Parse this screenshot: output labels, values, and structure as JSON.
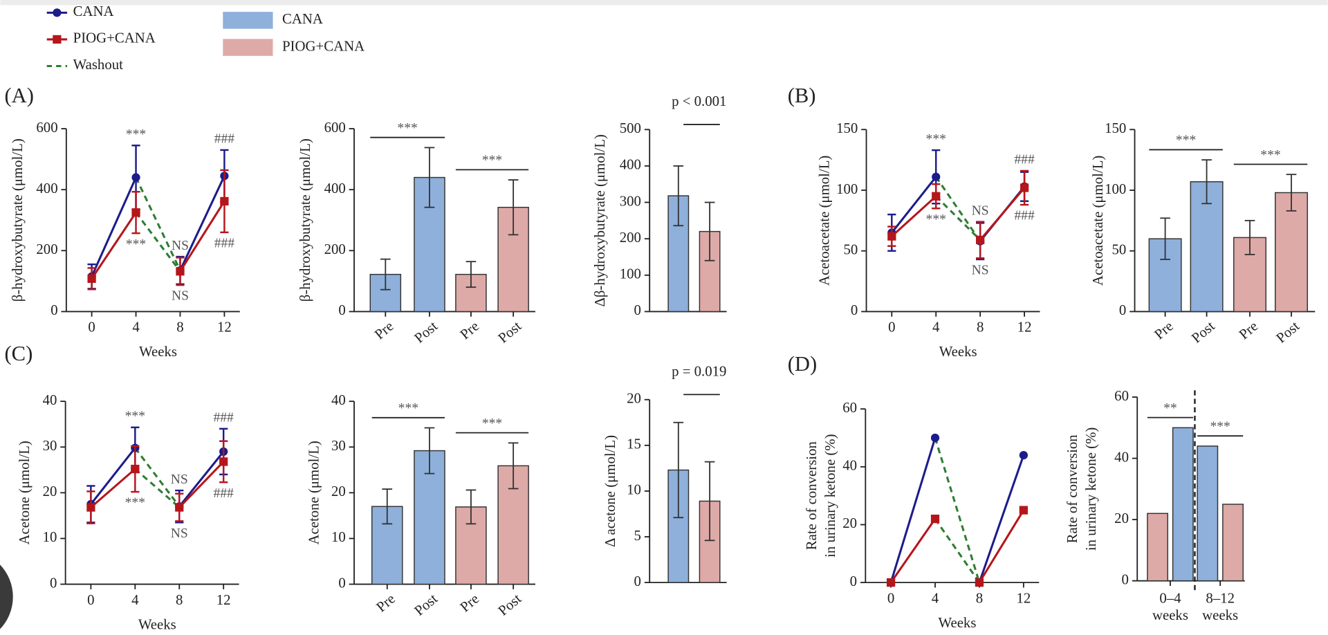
{
  "panel_labels": [
    "(A)",
    "(B)",
    "(C)",
    "(D)"
  ],
  "legend": {
    "lines": [
      {
        "name": "CANA",
        "color": "#1c1c8c",
        "marker": "circle"
      },
      {
        "name": "PIOG+CANA",
        "color": "#b5161b",
        "marker": "square"
      },
      {
        "name": "Washout",
        "color": "#2e7d32",
        "dash": true
      }
    ],
    "bars": [
      {
        "name": "CANA",
        "color": "#8eb0db"
      },
      {
        "name": "PIOG+CANA",
        "color": "#ddaaa8"
      }
    ]
  },
  "chart_data": [
    {
      "type": "line",
      "ylabel": "β-hydroxybutyrate (μmol/L)",
      "xlabel": "Weeks",
      "x": [
        0,
        4,
        8,
        12
      ],
      "xlim": [
        -2.3,
        13.4
      ],
      "xticks": [
        0,
        4,
        8,
        12
      ],
      "ylim": [
        0,
        600
      ],
      "yticks": [
        0,
        200,
        400,
        600
      ],
      "dashed_between": [
        4,
        8
      ],
      "dash_color": "#2e7d32",
      "series": [
        {
          "color": "#1c1c8c",
          "marker": "circle",
          "values": [
            115,
            440,
            135,
            445
          ],
          "errors": [
            40,
            105,
            45,
            85
          ]
        },
        {
          "color": "#b5161b",
          "marker": "square",
          "values": [
            108,
            325,
            132,
            362
          ],
          "errors": [
            35,
            68,
            45,
            102
          ]
        }
      ],
      "annotations": [
        {
          "text": "***",
          "x": 4,
          "pos": "above"
        },
        {
          "text": "***",
          "x": 4,
          "pos": "below"
        },
        {
          "text": "NS",
          "x": 8,
          "pos": "above"
        },
        {
          "text": "NS",
          "x": 8,
          "pos": "below"
        },
        {
          "text": "###",
          "x": 12,
          "pos": "above"
        },
        {
          "text": "###",
          "x": 12,
          "pos": "below"
        }
      ]
    },
    {
      "type": "bar",
      "ylabel": "β-hydroxybutyrate (μmol/L)",
      "categories": [
        "Pre",
        "Post",
        "Pre",
        "Post"
      ],
      "values": [
        122,
        440,
        122,
        342
      ],
      "errors": [
        50,
        98,
        42,
        90
      ],
      "colors": [
        "#8eb0db",
        "#8eb0db",
        "#ddaaa8",
        "#ddaaa8"
      ],
      "ylim": [
        0,
        600
      ],
      "yticks": [
        0,
        200,
        400,
        600
      ],
      "brackets": [
        {
          "text": "***",
          "from": 0,
          "to": 1
        },
        {
          "text": "***",
          "from": 2,
          "to": 3
        }
      ]
    },
    {
      "type": "bar",
      "ylabel": "Δβ-hydroxybutyrate (μmol/L)",
      "categories": [
        null,
        null
      ],
      "values": [
        318,
        220
      ],
      "errors": [
        82,
        80
      ],
      "colors": [
        "#8eb0db",
        "#ddaaa8"
      ],
      "ylim": [
        0,
        500
      ],
      "yticks": [
        0,
        100,
        200,
        300,
        400,
        500
      ],
      "p_label": "p < 0.001"
    },
    {
      "type": "line",
      "ylabel": "Acetoacetate (μmol/L)",
      "xlabel": "Weeks",
      "x": [
        0,
        4,
        8,
        12
      ],
      "xlim": [
        -2.3,
        13.4
      ],
      "xticks": [
        0,
        4,
        8,
        12
      ],
      "ylim": [
        0,
        150
      ],
      "yticks": [
        0,
        50,
        100,
        150
      ],
      "dashed_between": [
        4,
        8
      ],
      "dash_color": "#2e7d32",
      "series": [
        {
          "color": "#1c1c8c",
          "marker": "circle",
          "values": [
            65,
            111,
            58,
            103
          ],
          "errors": [
            15,
            22,
            15,
            12
          ]
        },
        {
          "color": "#b5161b",
          "marker": "square",
          "values": [
            62,
            95,
            59,
            102
          ],
          "errors": [
            8,
            10,
            15,
            14
          ]
        }
      ],
      "annotations": [
        {
          "text": "***",
          "x": 4,
          "pos": "above"
        },
        {
          "text": "***",
          "x": 4,
          "pos": "below"
        },
        {
          "text": "NS",
          "x": 8,
          "pos": "above"
        },
        {
          "text": "NS",
          "x": 8,
          "pos": "below"
        },
        {
          "text": "###",
          "x": 12,
          "pos": "above"
        },
        {
          "text": "###",
          "x": 12,
          "pos": "below"
        }
      ]
    },
    {
      "type": "bar",
      "ylabel": "Acetoacetate (μmol/L)",
      "categories": [
        "Pre",
        "Post",
        "Pre",
        "Post"
      ],
      "values": [
        60,
        107,
        61,
        98
      ],
      "errors": [
        17,
        18,
        14,
        15
      ],
      "colors": [
        "#8eb0db",
        "#8eb0db",
        "#ddaaa8",
        "#ddaaa8"
      ],
      "ylim": [
        0,
        150
      ],
      "yticks": [
        0,
        50,
        100,
        150
      ],
      "brackets": [
        {
          "text": "***",
          "from": 0,
          "to": 1
        },
        {
          "text": "***",
          "from": 2,
          "to": 3
        }
      ]
    },
    {
      "type": "line",
      "ylabel": "Acetone (μmol/L)",
      "xlabel": "Weeks",
      "x": [
        0,
        4,
        8,
        12
      ],
      "xlim": [
        -2.3,
        13.4
      ],
      "xticks": [
        0,
        4,
        8,
        12
      ],
      "ylim": [
        0,
        40
      ],
      "yticks": [
        0,
        10,
        20,
        30,
        40
      ],
      "dashed_between": [
        4,
        8
      ],
      "dash_color": "#2e7d32",
      "series": [
        {
          "color": "#1c1c8c",
          "marker": "circle",
          "values": [
            17.5,
            29.8,
            17,
            29
          ],
          "errors": [
            4,
            4.5,
            3.5,
            5
          ]
        },
        {
          "color": "#b5161b",
          "marker": "square",
          "values": [
            16.8,
            25.2,
            16.8,
            26.8
          ],
          "errors": [
            3.5,
            5,
            3,
            4.5
          ]
        }
      ],
      "annotations": [
        {
          "text": "***",
          "x": 4,
          "pos": "above"
        },
        {
          "text": "***",
          "x": 4,
          "pos": "below"
        },
        {
          "text": "NS",
          "x": 8,
          "pos": "above"
        },
        {
          "text": "NS",
          "x": 8,
          "pos": "below"
        },
        {
          "text": "###",
          "x": 12,
          "pos": "above"
        },
        {
          "text": "###",
          "x": 12,
          "pos": "below"
        }
      ]
    },
    {
      "type": "bar",
      "ylabel": "Acetone (μmol/L)",
      "categories": [
        "Pre",
        "Post",
        "Pre",
        "Post"
      ],
      "values": [
        17,
        29.2,
        16.9,
        25.9
      ],
      "errors": [
        3.8,
        5,
        3.7,
        5
      ],
      "colors": [
        "#8eb0db",
        "#8eb0db",
        "#ddaaa8",
        "#ddaaa8"
      ],
      "ylim": [
        0,
        40
      ],
      "yticks": [
        0,
        10,
        20,
        30,
        40
      ],
      "brackets": [
        {
          "text": "***",
          "from": 0,
          "to": 1
        },
        {
          "text": "***",
          "from": 2,
          "to": 3
        }
      ]
    },
    {
      "type": "bar",
      "ylabel": "Δ acetone (μmol/L)",
      "categories": [
        null,
        null
      ],
      "values": [
        12.3,
        8.9
      ],
      "errors": [
        5.2,
        4.3
      ],
      "colors": [
        "#8eb0db",
        "#ddaaa8"
      ],
      "ylim": [
        0,
        20
      ],
      "yticks": [
        0,
        5,
        10,
        15,
        20
      ],
      "p_label": "p = 0.019"
    },
    {
      "type": "line",
      "ylabel": [
        "Rate of conversion",
        "in urinary ketone (%)"
      ],
      "xlabel": "Weeks",
      "x": [
        0,
        4,
        8,
        12
      ],
      "xlim": [
        -2.3,
        13.4
      ],
      "xticks": [
        0,
        4,
        8,
        12
      ],
      "ylim": [
        0,
        60
      ],
      "yticks": [
        0,
        20,
        40,
        60
      ],
      "dashed_between": [
        4,
        8
      ],
      "dash_color": "#2e7d32",
      "series": [
        {
          "color": "#1c1c8c",
          "marker": "circle",
          "values": [
            0,
            50,
            0,
            44
          ]
        },
        {
          "color": "#b5161b",
          "marker": "square",
          "values": [
            0,
            22,
            0,
            25
          ]
        }
      ]
    },
    {
      "type": "bar",
      "ylabel": [
        "Rate of conversion",
        "in urinary ketone (%)"
      ],
      "categories": [
        null,
        null,
        null,
        null
      ],
      "groups": [
        [
          "0–4",
          "weeks"
        ],
        [
          "8–12",
          "weeks"
        ]
      ],
      "values": [
        22,
        50,
        44,
        25
      ],
      "colors": [
        "#ddaaa8",
        "#8eb0db",
        "#8eb0db",
        "#ddaaa8"
      ],
      "ylim": [
        0,
        60
      ],
      "yticks": [
        0,
        20,
        40,
        60
      ],
      "separator": true,
      "brackets": [
        {
          "text": "**",
          "from": 0,
          "to": 1
        },
        {
          "text": "***",
          "from": 2,
          "to": 3
        }
      ]
    }
  ]
}
